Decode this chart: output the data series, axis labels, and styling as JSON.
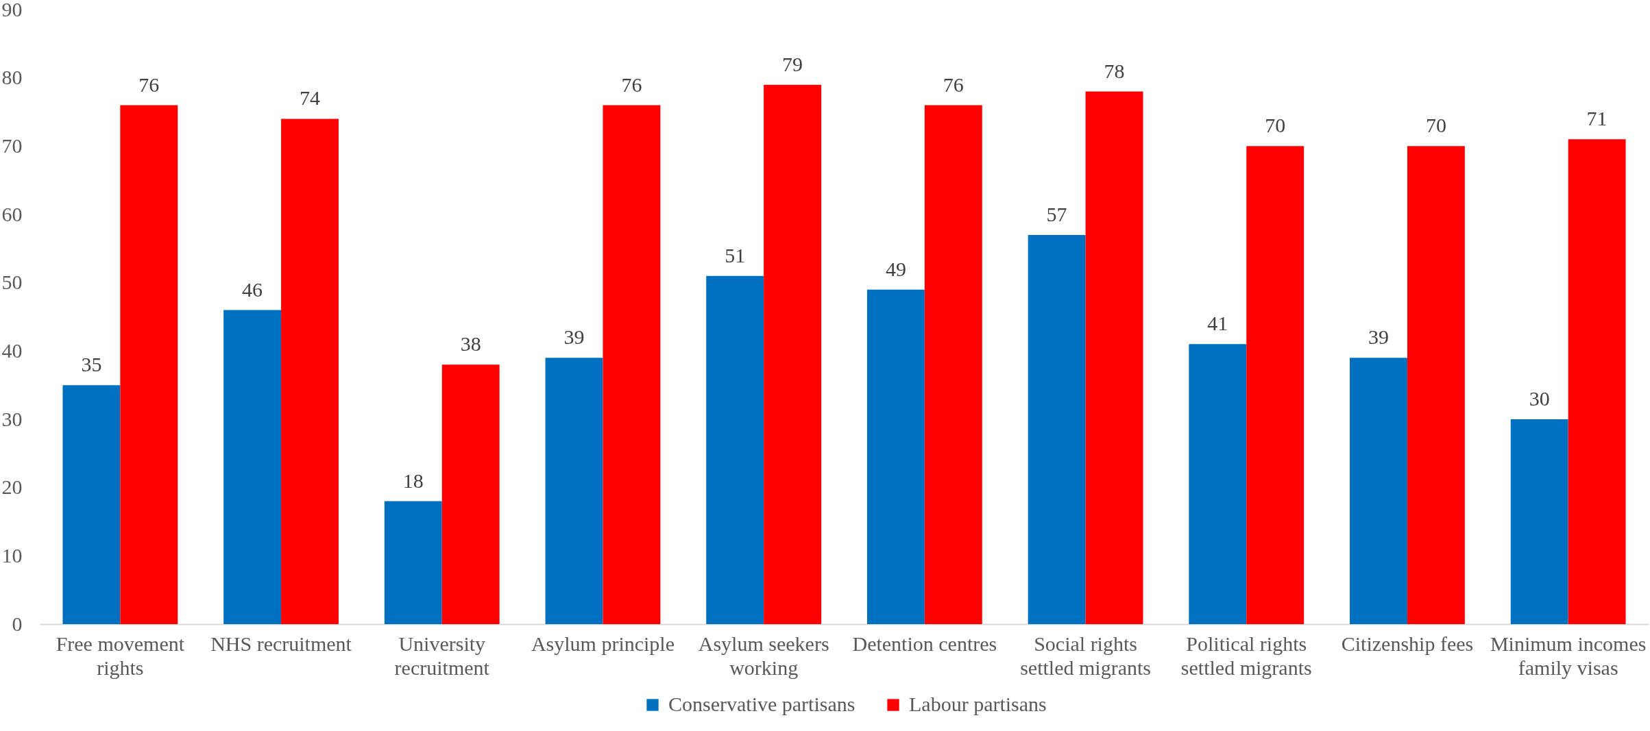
{
  "chart_data": {
    "type": "bar",
    "categories": [
      "Free movement rights",
      "NHS recruitment",
      "University recruitment",
      "Asylum principle",
      "Asylum seekers working",
      "Detention centres",
      "Social rights settled migrants",
      "Political rights settled migrants",
      "Citizenship fees",
      "Minimum incomes family visas"
    ],
    "series": [
      {
        "name": "Conservative partisans",
        "color": "#0070c0",
        "values": [
          35,
          46,
          18,
          39,
          51,
          49,
          57,
          41,
          39,
          30
        ]
      },
      {
        "name": "Labour partisans",
        "color": "#ff0000",
        "values": [
          76,
          74,
          38,
          76,
          79,
          76,
          78,
          70,
          70,
          71
        ]
      }
    ],
    "ylim": [
      0,
      90
    ],
    "yticks": [
      0,
      10,
      20,
      30,
      40,
      50,
      60,
      70,
      80,
      90
    ],
    "grid": false,
    "legend": "bottom",
    "data_labels": true
  }
}
